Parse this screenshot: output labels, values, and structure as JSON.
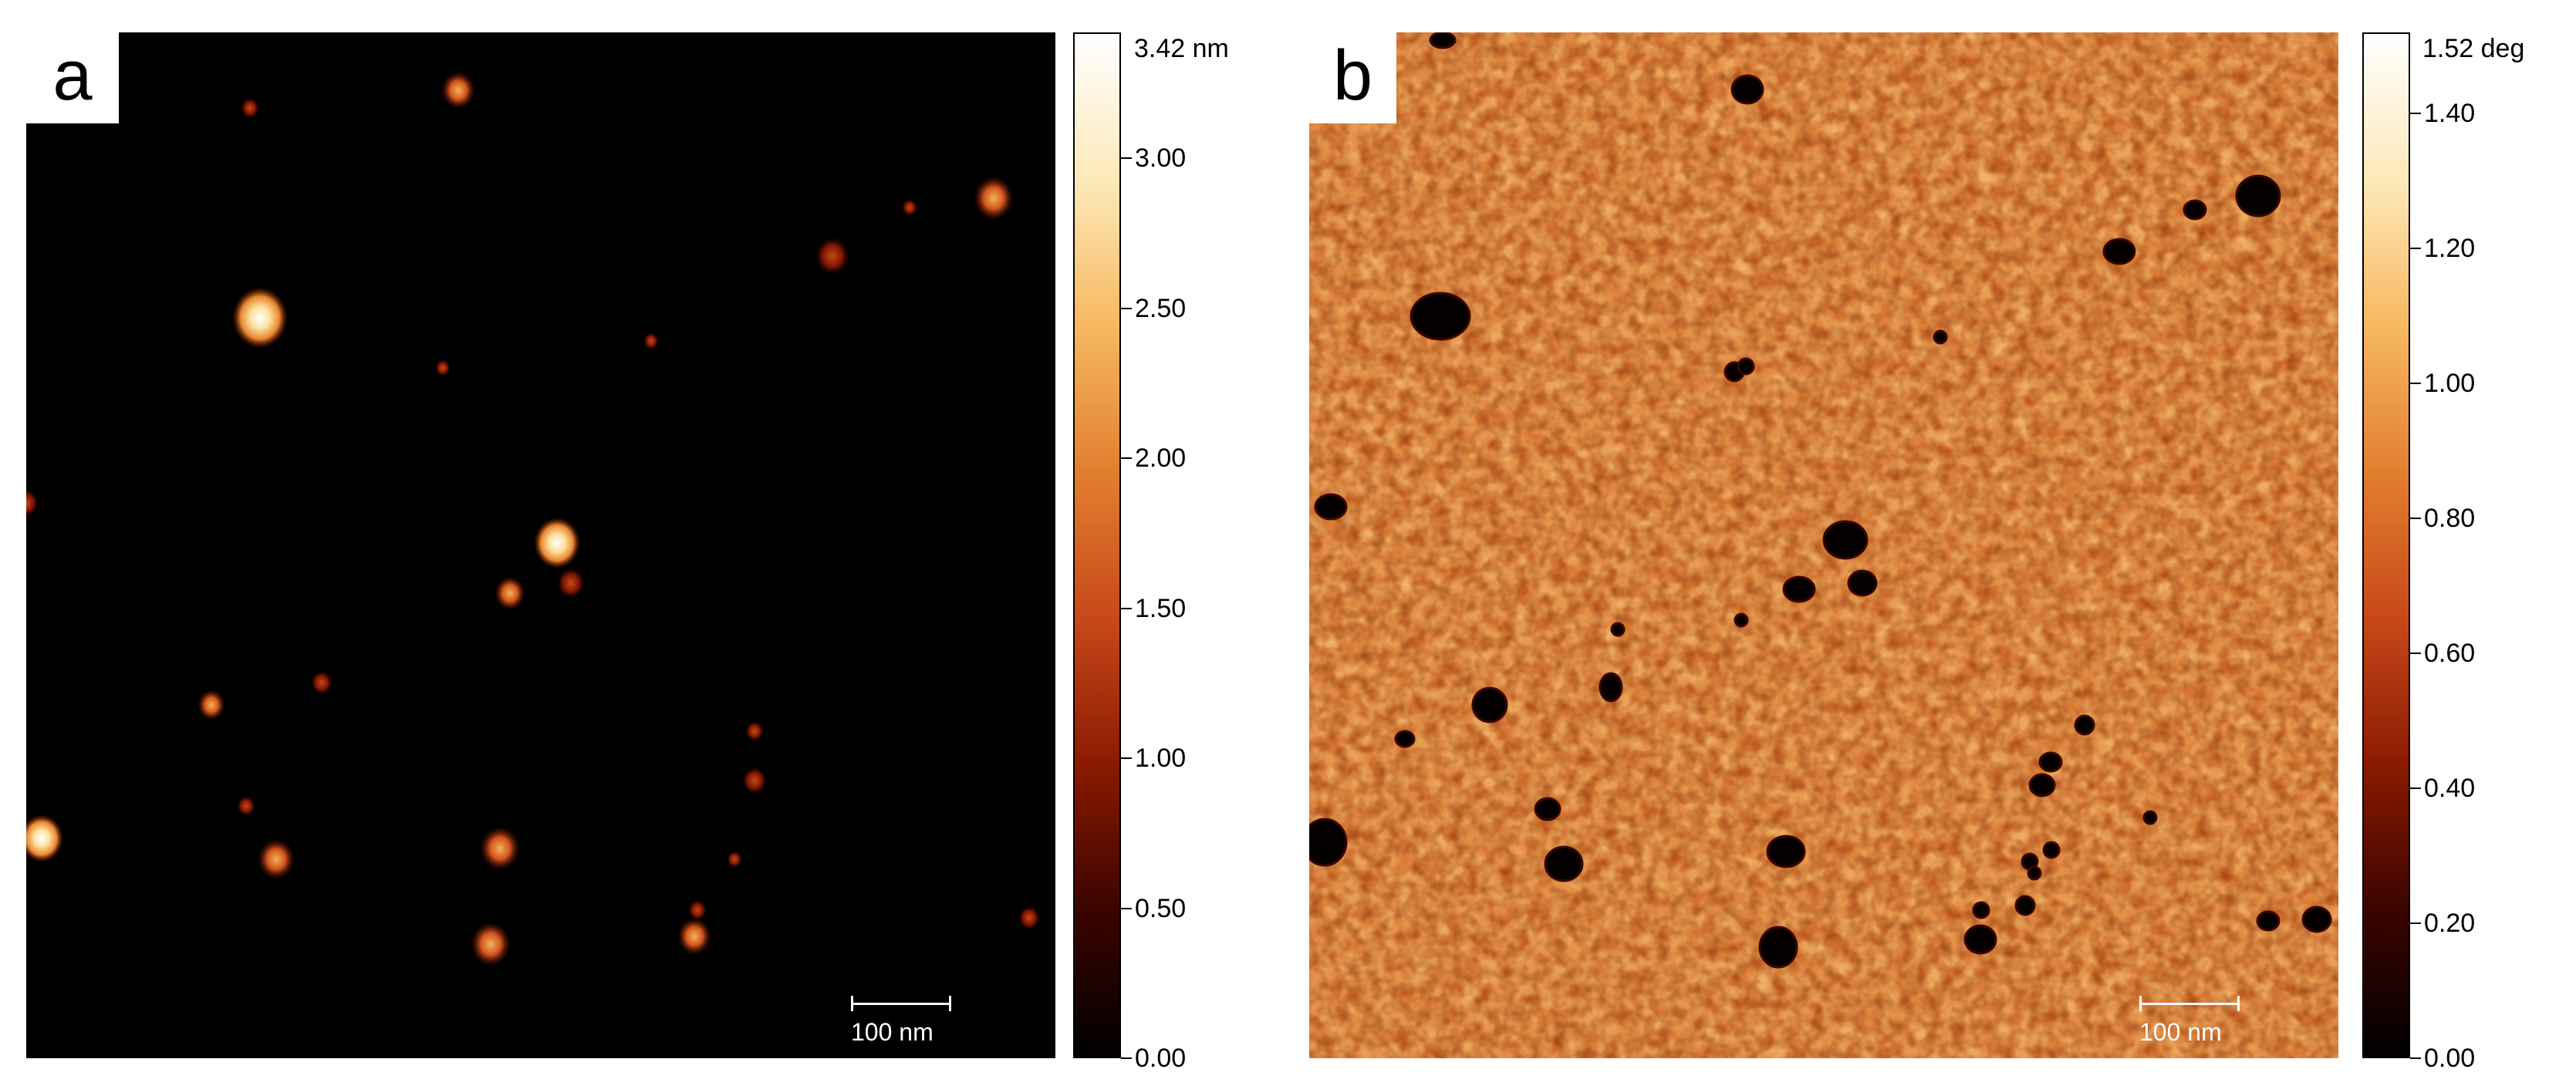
{
  "panels": {
    "a": {
      "letter": "a",
      "scale_bar": "100 nm",
      "colorbar": {
        "max_label": "3.42 nm",
        "ticks": [
          "3.00",
          "2.50",
          "2.00",
          "1.50",
          "1.00",
          "0.50",
          "0.00"
        ],
        "colors": [
          "#000000",
          "#3a0400",
          "#8a1a00",
          "#c8481a",
          "#e27f2f",
          "#f6b860",
          "#fde9b9",
          "#ffffff"
        ]
      }
    },
    "b": {
      "letter": "b",
      "scale_bar": "100 nm",
      "colorbar": {
        "max_label": "1.52 deg",
        "ticks": [
          "1.40",
          "1.20",
          "1.00",
          "0.80",
          "0.60",
          "0.40",
          "0.20",
          "0.00"
        ],
        "colors": [
          "#000000",
          "#3a0400",
          "#8a1a00",
          "#c8481a",
          "#e27f2f",
          "#f6b860",
          "#fde9b9",
          "#ffffff"
        ]
      }
    }
  }
}
